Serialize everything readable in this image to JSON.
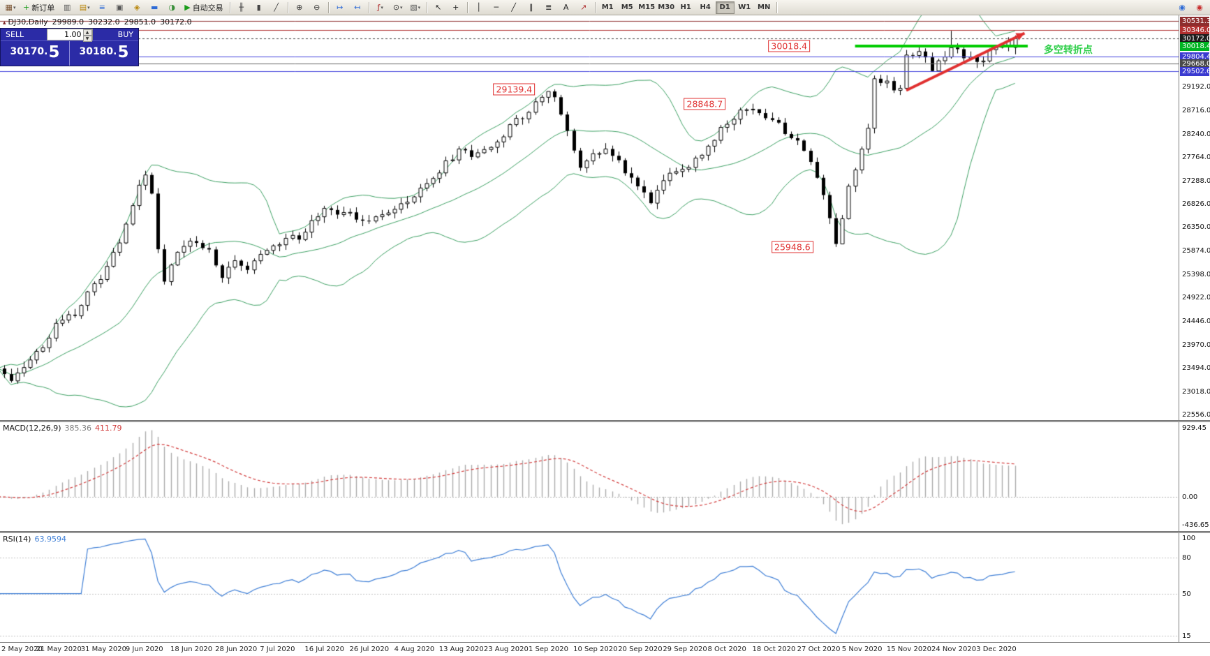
{
  "toolbar": {
    "active_timeframe": "D1",
    "items": [
      {
        "type": "icon",
        "name": "new-chart-icon",
        "glyph": "▦",
        "color": "#7a5230",
        "dropdown": true
      },
      {
        "type": "labeled",
        "name": "new-order-button",
        "glyph": "+",
        "color": "#1a9c1a",
        "label": "新订单"
      },
      {
        "type": "icon",
        "name": "chart-window-icon",
        "glyph": "▥",
        "color": "#555555"
      },
      {
        "type": "icon",
        "name": "profiles-icon",
        "glyph": "▤",
        "color": "#b8860b",
        "dropdown": true
      },
      {
        "type": "icon",
        "name": "market-watch-icon",
        "glyph": "≡",
        "color": "#2e6bd6"
      },
      {
        "type": "icon",
        "name": "data-window-icon",
        "glyph": "▣",
        "color": "#555555"
      },
      {
        "type": "icon",
        "name": "navigator-icon",
        "glyph": "◈",
        "color": "#b8860b"
      },
      {
        "type": "icon",
        "name": "terminal-icon",
        "glyph": "▬",
        "color": "#2e6bd6"
      },
      {
        "type": "icon",
        "name": "strategy-tester-icon",
        "glyph": "◑",
        "color": "#3a8f3a"
      },
      {
        "type": "labeled",
        "name": "auto-trading-button",
        "glyph": "▶",
        "color": "#1a9c1a",
        "label": "自动交易"
      },
      {
        "type": "sep"
      },
      {
        "type": "icon",
        "name": "bar-chart-icon",
        "glyph": "╫",
        "color": "#444444"
      },
      {
        "type": "icon",
        "name": "candlestick-chart-icon",
        "glyph": "▮",
        "color": "#444444"
      },
      {
        "type": "icon",
        "name": "line-chart-icon",
        "glyph": "╱",
        "color": "#444444"
      },
      {
        "type": "sep"
      },
      {
        "type": "icon",
        "name": "zoom-in-icon",
        "glyph": "⊕",
        "color": "#333333"
      },
      {
        "type": "icon",
        "name": "zoom-out-icon",
        "glyph": "⊖",
        "color": "#333333"
      },
      {
        "type": "sep"
      },
      {
        "type": "icon",
        "name": "auto-scroll-icon",
        "glyph": "↦",
        "color": "#2e6bd6"
      },
      {
        "type": "icon",
        "name": "chart-shift-icon",
        "glyph": "↤",
        "color": "#2e6bd6"
      },
      {
        "type": "sep"
      },
      {
        "type": "icon",
        "name": "indicators-icon",
        "glyph": "ƒ",
        "color": "#b03030",
        "dropdown": true
      },
      {
        "type": "icon",
        "name": "periods-icon",
        "glyph": "⊙",
        "color": "#333333",
        "dropdown": true
      },
      {
        "type": "icon",
        "name": "templates-icon",
        "glyph": "▧",
        "color": "#555555",
        "dropdown": true
      },
      {
        "type": "sep"
      },
      {
        "type": "icon",
        "name": "cursor-icon",
        "glyph": "↖",
        "color": "#222222"
      },
      {
        "type": "icon",
        "name": "crosshair-icon",
        "glyph": "+",
        "color": "#222222"
      },
      {
        "type": "sep"
      },
      {
        "type": "icon",
        "name": "vertical-line-icon",
        "glyph": "│",
        "color": "#222222"
      },
      {
        "type": "icon",
        "name": "horizontal-line-icon",
        "glyph": "─",
        "color": "#222222"
      },
      {
        "type": "icon",
        "name": "trendline-icon",
        "glyph": "╱",
        "color": "#222222"
      },
      {
        "type": "icon",
        "name": "channel-icon",
        "glyph": "∥",
        "color": "#222222"
      },
      {
        "type": "icon",
        "name": "fibonacci-icon",
        "glyph": "≣",
        "color": "#222222"
      },
      {
        "type": "icon",
        "name": "text-label-icon",
        "glyph": "A",
        "color": "#222222"
      },
      {
        "type": "icon",
        "name": "arrow-object-icon",
        "glyph": "↗",
        "color": "#b03030"
      },
      {
        "type": "sep"
      },
      {
        "type": "tf",
        "name": "timeframe-m1-button",
        "label": "M1"
      },
      {
        "type": "tf",
        "name": "timeframe-m5-button",
        "label": "M5"
      },
      {
        "type": "tf",
        "name": "timeframe-m15-button",
        "label": "M15"
      },
      {
        "type": "tf",
        "name": "timeframe-m30-button",
        "label": "M30"
      },
      {
        "type": "tf",
        "name": "timeframe-h1-button",
        "label": "H1"
      },
      {
        "type": "tf",
        "name": "timeframe-h4-button",
        "label": "H4"
      },
      {
        "type": "tf",
        "name": "timeframe-d1-button",
        "label": "D1"
      },
      {
        "type": "tf",
        "name": "timeframe-w1-button",
        "label": "W1"
      },
      {
        "type": "tf",
        "name": "timeframe-mn-button",
        "label": "MN"
      },
      {
        "type": "sep"
      },
      {
        "type": "icon",
        "name": "community-icon",
        "glyph": "◉",
        "color": "#2e6bd6",
        "right": true
      },
      {
        "type": "icon",
        "name": "live-chat-icon",
        "glyph": "◉",
        "color": "#c83232"
      }
    ]
  },
  "chart_header": {
    "symbol": "DJ30,Daily",
    "open": "29989.0",
    "high": "30232.0",
    "low": "29851.0",
    "close": "30172.0"
  },
  "trade_panel": {
    "sell_label": "SELL",
    "buy_label": "BUY",
    "volume": "1.00",
    "sell_price_main": "30170.",
    "sell_price_big": "5",
    "buy_price_main": "30180.",
    "buy_price_big": "5"
  },
  "annotations": {
    "flags": [
      {
        "text": "30018.4",
        "bar": 123.7,
        "price": 30018.4
      },
      {
        "text": "29139.4",
        "bar": 80.7,
        "price": 29139.4
      },
      {
        "text": "28848.7",
        "bar": 110.5,
        "price": 28848.7
      },
      {
        "text": "25948.6",
        "bar": 124.2,
        "price": 25948.6
      }
    ],
    "note": {
      "text": "多空转折点",
      "bar": 163.5,
      "price": 29965,
      "color": "#2fcf4a"
    }
  },
  "price_axis": {
    "ticks": [
      29192.0,
      28716.0,
      28240.0,
      27764.0,
      27288.0,
      26826.0,
      26350.0,
      25874.0,
      25398.0,
      24922.0,
      24446.0,
      23970.0,
      23494.0,
      23018.0,
      22556.0
    ],
    "markers": [
      {
        "value": "30531.3",
        "price": 30531.3,
        "bg": "#8e2d2d",
        "line": "#8e2d2d",
        "line_style": "solid"
      },
      {
        "value": "30346.0",
        "price": 30346.0,
        "bg": "#b03030",
        "line": "#b03030",
        "line_style": "solid"
      },
      {
        "value": "30172.0",
        "price": 30172.0,
        "bg": "#1c1c1c",
        "line": "#444444",
        "line_style": "dash"
      },
      {
        "value": "30018.4",
        "price": 30018.4,
        "bg": "#00b322",
        "line": null,
        "line_style": null
      },
      {
        "value": "29804.4",
        "price": 29804.4,
        "bg": "#3a3ad0",
        "line": "#4646dd",
        "line_style": "solid"
      },
      {
        "value": "29668.0",
        "price": 29668.0,
        "bg": "#4a4a4a",
        "line": "#6a6a6a",
        "line_style": "solid"
      },
      {
        "value": "29502.6",
        "price": 29502.6,
        "bg": "#3a3ad0",
        "line": "#4646dd",
        "line_style": "solid"
      }
    ]
  },
  "indicators": {
    "macd": {
      "label": "MACD(12,26,9)",
      "value_main": "385.36",
      "value_signal": "411.79",
      "axis": [
        "929.45",
        "0.00",
        "-436.65"
      ]
    },
    "rsi": {
      "label": "RSI(14)",
      "value": "63.9594",
      "axis": [
        "100",
        "80",
        "50",
        "15"
      ],
      "levels": [
        80,
        50,
        15
      ],
      "scale": [
        10,
        100
      ]
    }
  },
  "chart_data": {
    "type": "candlestick-ohlc",
    "symbol": "DJ30",
    "timeframe": "Daily",
    "bar_count": 160,
    "x0": -2.8,
    "bar_spacing": 9.16,
    "y_range": [
      22440,
      30640
    ],
    "label_bar_start": 2,
    "label_bar_step": 7,
    "last_bar": {
      "open": 29989.0,
      "high": 30232.0,
      "low": 29851.0,
      "close": 30172.0
    },
    "marked_extremes": {
      "sep_high": 29139.4,
      "oct_high": 28848.7,
      "oct_low": 25948.6
    },
    "key_levels": {
      "resistance_1": 30531.3,
      "resistance_2": 30346.0,
      "current_price": 30172.0,
      "green_line": 30018.4,
      "support_1": 29804.4,
      "level_mid": 29668.0,
      "support_2": 29502.6
    },
    "overlays": {
      "bollinger": {
        "period": 20,
        "deviation": 2,
        "color": "#3da063"
      },
      "green_level_line": {
        "price": 30018.4,
        "from_bar": 134,
        "to_bar": 161,
        "color": "#00cc00",
        "width": 4
      },
      "trend_arrow": {
        "from": [
          142,
          29120
        ],
        "to": [
          160.5,
          30280
        ],
        "color": "#e03030",
        "width": 4
      }
    },
    "price_path_anchors": [
      [
        0,
        23450
      ],
      [
        2,
        23250
      ],
      [
        4,
        23550
      ],
      [
        7,
        23900
      ],
      [
        9,
        24350
      ],
      [
        12,
        24600
      ],
      [
        16,
        25350
      ],
      [
        19,
        26050
      ],
      [
        21,
        26800
      ],
      [
        23,
        27450
      ],
      [
        24,
        27050
      ],
      [
        25,
        25950
      ],
      [
        26,
        25250
      ],
      [
        28,
        25800
      ],
      [
        30,
        26050
      ],
      [
        33,
        25900
      ],
      [
        35,
        25350
      ],
      [
        37,
        25650
      ],
      [
        39,
        25550
      ],
      [
        41,
        25800
      ],
      [
        44,
        26050
      ],
      [
        47,
        26150
      ],
      [
        51,
        26700
      ],
      [
        54,
        26650
      ],
      [
        58,
        26500
      ],
      [
        61,
        26600
      ],
      [
        65,
        26950
      ],
      [
        68,
        27350
      ],
      [
        72,
        27900
      ],
      [
        75,
        27800
      ],
      [
        79,
        28250
      ],
      [
        82,
        28600
      ],
      [
        86,
        29050
      ],
      [
        87,
        28950
      ],
      [
        88,
        28600
      ],
      [
        90,
        27900
      ],
      [
        91,
        27500
      ],
      [
        93,
        27850
      ],
      [
        95,
        27950
      ],
      [
        97,
        27650
      ],
      [
        100,
        27200
      ],
      [
        102,
        26800
      ],
      [
        104,
        27350
      ],
      [
        107,
        27500
      ],
      [
        110,
        27850
      ],
      [
        113,
        28300
      ],
      [
        116,
        28650
      ],
      [
        118,
        28750
      ],
      [
        121,
        28500
      ],
      [
        123,
        28300
      ],
      [
        125,
        28100
      ],
      [
        127,
        27650
      ],
      [
        129,
        27000
      ],
      [
        131,
        26050
      ],
      [
        132,
        26550
      ],
      [
        133,
        27150
      ],
      [
        135,
        27950
      ],
      [
        136,
        28350
      ],
      [
        137,
        29350
      ],
      [
        139,
        29250
      ],
      [
        141,
        29100
      ],
      [
        142,
        29800
      ],
      [
        144,
        29950
      ],
      [
        146,
        29500
      ],
      [
        148,
        29850
      ],
      [
        149,
        30050
      ],
      [
        151,
        29830
      ],
      [
        153,
        29650
      ],
      [
        155,
        29890
      ],
      [
        157,
        30050
      ],
      [
        159,
        30172
      ]
    ],
    "x_labels": [
      "2 May 2020",
      "21 May 2020",
      "31 May 2020",
      "9 Jun 2020",
      "18 Jun 2020",
      "28 Jun 2020",
      "7 Jul 2020",
      "16 Jul 2020",
      "26 Jul 2020",
      "4 Aug 2020",
      "13 Aug 2020",
      "23 Aug 2020",
      "1 Sep 2020",
      "10 Sep 2020",
      "20 Sep 2020",
      "29 Sep 2020",
      "8 Oct 2020",
      "18 Oct 2020",
      "27 Oct 2020",
      "5 Nov 2020",
      "15 Nov 2020",
      "24 Nov 2020",
      "3 Dec 2020"
    ]
  }
}
